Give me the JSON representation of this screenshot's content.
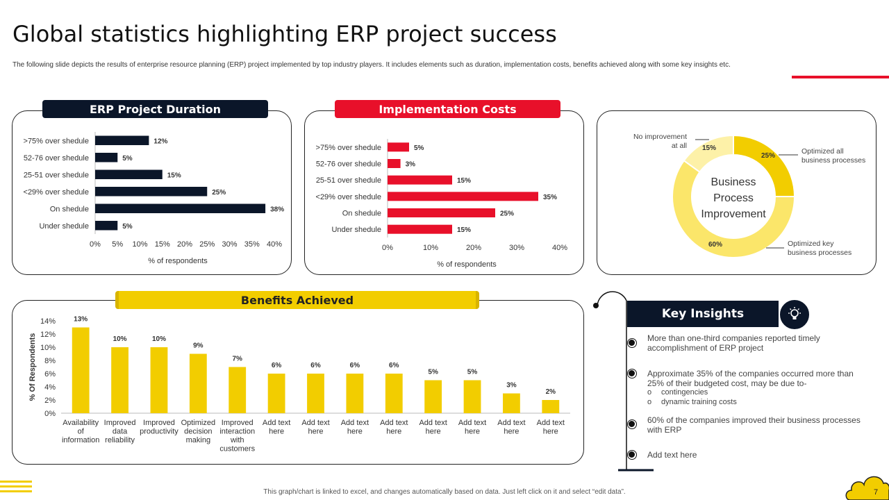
{
  "header": {
    "title": "Global statistics highlighting ERP project success",
    "subtitle": "The following slide depicts the results of enterprise resource planning (ERP)  project implemented  by top industry players. It includes elements such as duration, implementation  costs, benefits achieved along with some key insights etc."
  },
  "colors": {
    "navy": "#0b1629",
    "red": "#e8102a",
    "yellow": "#f2cd00",
    "light_yellow": "#fbe66a",
    "pale_yellow": "#fdf1a8"
  },
  "panels": {
    "duration_title": "ERP Project Duration",
    "costs_title": "Implementation Costs",
    "benefits_title": "Benefits Achieved",
    "insights_title": "Key Insights",
    "insights_icon": "lightbulb-icon"
  },
  "chart_data": [
    {
      "type": "bar",
      "orientation": "horizontal",
      "title": "ERP Project Duration",
      "categories": [
        ">75% over shedule",
        "52-76 over shedule",
        "25-51 over shedule",
        "<29% over shedule",
        "On shedule",
        "Under shedule"
      ],
      "values": [
        12,
        5,
        15,
        25,
        38,
        5
      ],
      "data_labels": [
        "12%",
        "5%",
        "15%",
        "25%",
        "38%",
        "5%"
      ],
      "xlabel": "% of respondents",
      "xticks": [
        "0%",
        "5%",
        "10%",
        "15%",
        "20%",
        "25%",
        "30%",
        "35%",
        "40%"
      ],
      "xlim": [
        0,
        40
      ],
      "color": "#0b1629"
    },
    {
      "type": "bar",
      "orientation": "horizontal",
      "title": "Implementation Costs",
      "categories": [
        ">75% over shedule",
        "52-76 over shedule",
        "25-51 over shedule",
        "<29% over shedule",
        "On shedule",
        "Under shedule"
      ],
      "values": [
        5,
        3,
        15,
        35,
        25,
        15
      ],
      "data_labels": [
        "5%",
        "3%",
        "15%",
        "35%",
        "25%",
        "15%"
      ],
      "xlabel": "% of respondents",
      "xticks": [
        "0%",
        "10%",
        "20%",
        "30%",
        "40%"
      ],
      "xlim": [
        0,
        40
      ],
      "color": "#e8102a"
    },
    {
      "type": "pie",
      "variant": "donut",
      "center_label": "Business Process Improvement",
      "slices": [
        {
          "label": "Optimized all business processes",
          "value": 25,
          "display": "25%",
          "color": "#f2cd00"
        },
        {
          "label": "Optimized key business processes",
          "value": 60,
          "display": "60%",
          "color": "#fbe66a"
        },
        {
          "label": "No improvement at all",
          "value": 15,
          "display": "15%",
          "color": "#fdf1a8"
        }
      ]
    },
    {
      "type": "bar",
      "orientation": "vertical",
      "title": "Benefits Achieved",
      "categories": [
        [
          "Availability",
          "of",
          "information"
        ],
        [
          "Improved",
          "data",
          "reliability"
        ],
        [
          "Improved",
          "productivity"
        ],
        [
          "Optimized",
          "decision",
          "making"
        ],
        [
          "Improved",
          "interaction",
          "with",
          "customers"
        ],
        [
          "Add text",
          "here"
        ],
        [
          "Add text",
          "here"
        ],
        [
          "Add text",
          "here"
        ],
        [
          "Add text",
          "here"
        ],
        [
          "Add text",
          "here"
        ],
        [
          "Add text",
          "here"
        ],
        [
          "Add text",
          "here"
        ],
        [
          "Add text",
          "here"
        ]
      ],
      "values": [
        13,
        10,
        10,
        9,
        7,
        6,
        6,
        6,
        6,
        5,
        5,
        3,
        2
      ],
      "data_labels": [
        "13%",
        "10%",
        "10%",
        "9%",
        "7%",
        "6%",
        "6%",
        "6%",
        "6%",
        "5%",
        "5%",
        "3%",
        "2%"
      ],
      "ylabel": "% Of Respondents",
      "yticks": [
        "0%",
        "2%",
        "4%",
        "6%",
        "8%",
        "10%",
        "12%",
        "14%"
      ],
      "ylim": [
        0,
        14
      ],
      "color": "#f2cd00"
    }
  ],
  "insights": {
    "item1": "More than one-third companies reported timely accomplishment of ERP project",
    "item2": "Approximate 35% of the companies occurred more than 25% of their budgeted cost, may be due to-",
    "item2_sub1": "contingencies",
    "item2_sub2": "dynamic training costs",
    "sub_bullet": "o",
    "item3": "60% of the companies improved their business processes with ERP",
    "item4": "Add text here"
  },
  "footer": {
    "note": "This graph/chart is linked to excel, and changes automatically based on data. Just left click on it and select “edit data”.",
    "page": "7"
  }
}
